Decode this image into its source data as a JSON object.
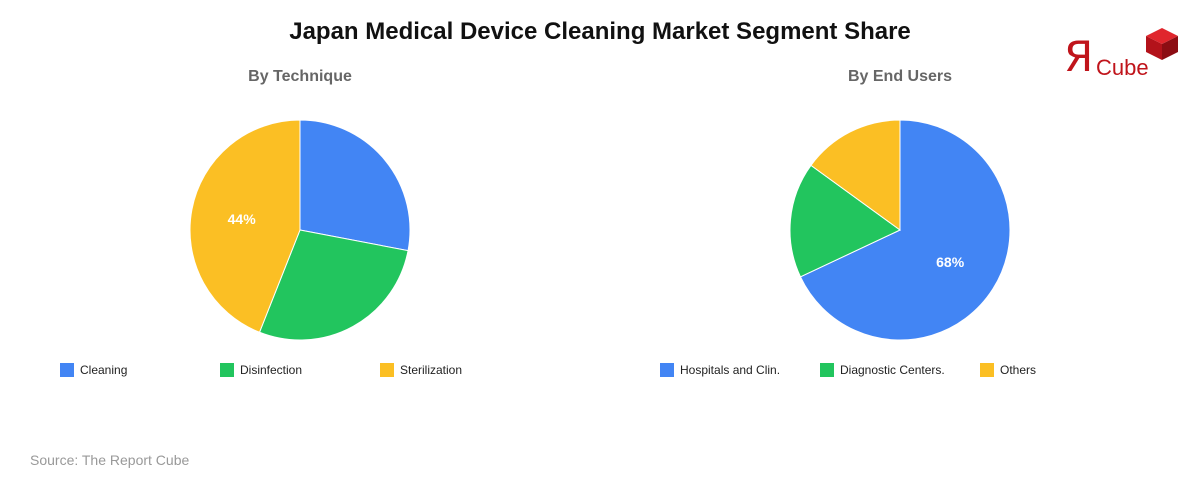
{
  "title": "Japan Medical Device Cleaning Market Segment Share",
  "source": "Source: The Report Cube",
  "logo": {
    "mark": "Я",
    "text": "Cube",
    "color": "#c0141b"
  },
  "chart_data": [
    {
      "type": "pie",
      "title": "By Technique",
      "labels": [
        "Cleaning",
        "Disinfection",
        "Sterilization"
      ],
      "values": [
        28,
        28,
        44
      ],
      "colors": [
        "#4285f4",
        "#22c55e",
        "#fbbf24"
      ],
      "data_labels": [
        "",
        "",
        "44%"
      ],
      "legend": "bottom"
    },
    {
      "type": "pie",
      "title": "By End Users",
      "labels": [
        "Hospitals and Clin.",
        "Diagnostic Centers.",
        "Others"
      ],
      "values": [
        68,
        17,
        15
      ],
      "colors": [
        "#4285f4",
        "#22c55e",
        "#fbbf24"
      ],
      "data_labels": [
        "68%",
        "",
        ""
      ],
      "legend": "bottom"
    }
  ]
}
